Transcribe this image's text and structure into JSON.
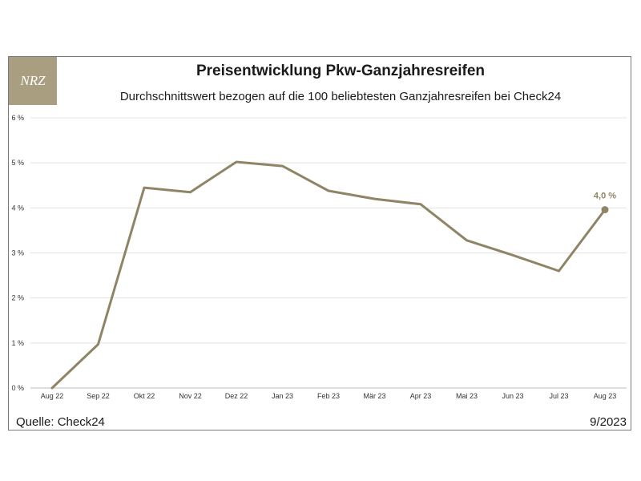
{
  "logo": {
    "text": "NRZ"
  },
  "title": "Preisentwicklung Pkw-Ganzjahresreifen",
  "subtitle": "Durchschnittswert bezogen auf die 100 beliebtesten Ganzjahresreifen bei Check24",
  "footer": {
    "source": "Quelle: Check24",
    "date": "9/2023"
  },
  "colors": {
    "line": "#8f8466",
    "grid": "#e3e3e3",
    "logo_bg": "#a99f80"
  },
  "chart_data": {
    "type": "line",
    "categories": [
      "Aug 22",
      "Sep 22",
      "Okt 22",
      "Nov 22",
      "Dez 22",
      "Jan 23",
      "Feb 23",
      "Mär 23",
      "Apr 23",
      "Mai 23",
      "Jun 23",
      "Jul 23",
      "Aug 23"
    ],
    "values": [
      0.0,
      0.97,
      4.45,
      4.35,
      5.02,
      4.93,
      4.38,
      4.2,
      4.08,
      3.28,
      2.95,
      2.6,
      3.96
    ],
    "ylim": [
      0,
      6
    ],
    "yticks": [
      {
        "value": 0,
        "label": "0 %"
      },
      {
        "value": 1,
        "label": "1 %"
      },
      {
        "value": 2,
        "label": "2 %"
      },
      {
        "value": 3,
        "label": "3 %"
      },
      {
        "value": 4,
        "label": "4 %"
      },
      {
        "value": 5,
        "label": "5 %"
      },
      {
        "value": 6,
        "label": "6 %"
      }
    ],
    "annotation": {
      "index": 12,
      "label": "4,0 %"
    },
    "grid": true,
    "legend": "none"
  }
}
